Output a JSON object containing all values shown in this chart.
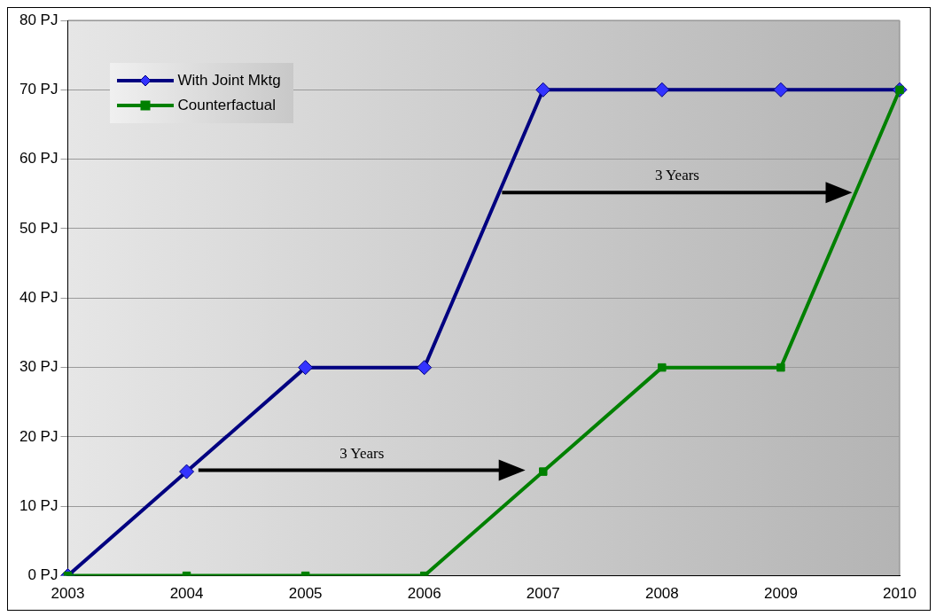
{
  "chart_data": {
    "type": "line",
    "categories": [
      "2003",
      "2004",
      "2005",
      "2006",
      "2007",
      "2008",
      "2009",
      "2010"
    ],
    "series": [
      {
        "name": "With Joint Mktg",
        "color": "#000080",
        "marker": "diamond",
        "values": [
          0,
          15,
          30,
          30,
          70,
          70,
          70,
          70
        ]
      },
      {
        "name": "Counterfactual",
        "color": "#008000",
        "marker": "square",
        "values": [
          0,
          0,
          0,
          0,
          15,
          30,
          30,
          70
        ]
      }
    ],
    "ylim": [
      0,
      80
    ],
    "yticks": [
      {
        "value": 0,
        "label": "0 PJ"
      },
      {
        "value": 10,
        "label": "10 PJ"
      },
      {
        "value": 20,
        "label": "20 PJ"
      },
      {
        "value": 30,
        "label": "30 PJ"
      },
      {
        "value": 40,
        "label": "40 PJ"
      },
      {
        "value": 50,
        "label": "50 PJ"
      },
      {
        "value": 60,
        "label": "60 PJ"
      },
      {
        "value": 70,
        "label": "70 PJ"
      },
      {
        "value": 80,
        "label": "80 PJ"
      }
    ],
    "grid": "y",
    "legend": "top left",
    "line_style": "solid",
    "annotations": [
      "3 Years",
      "3 Years"
    ]
  }
}
